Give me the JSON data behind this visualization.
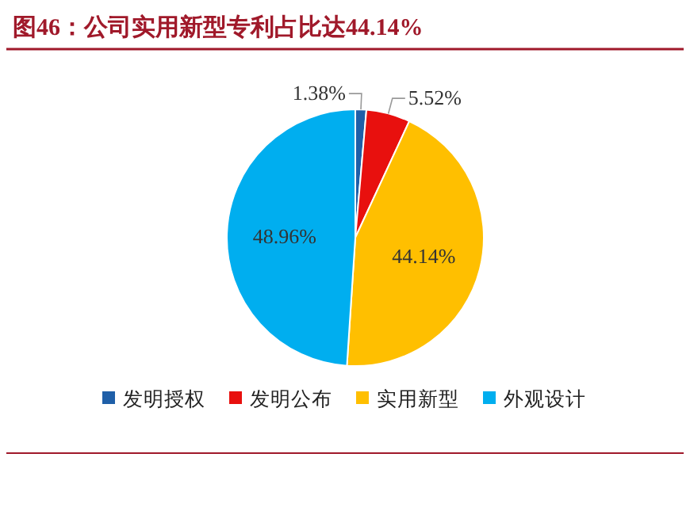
{
  "chart_data": {
    "type": "pie",
    "title": "图46：公司实用新型专利占比达44.14%",
    "categories": [
      "发明授权",
      "发明公布",
      "实用新型",
      "外观设计"
    ],
    "values": [
      1.38,
      5.52,
      44.14,
      48.96
    ],
    "value_labels": [
      "1.38%",
      "5.52%",
      "44.14%",
      "48.96%"
    ],
    "colors": [
      "#1f5fa8",
      "#e8100e",
      "#ffbf00",
      "#00aeef"
    ],
    "legend": "bottom"
  }
}
